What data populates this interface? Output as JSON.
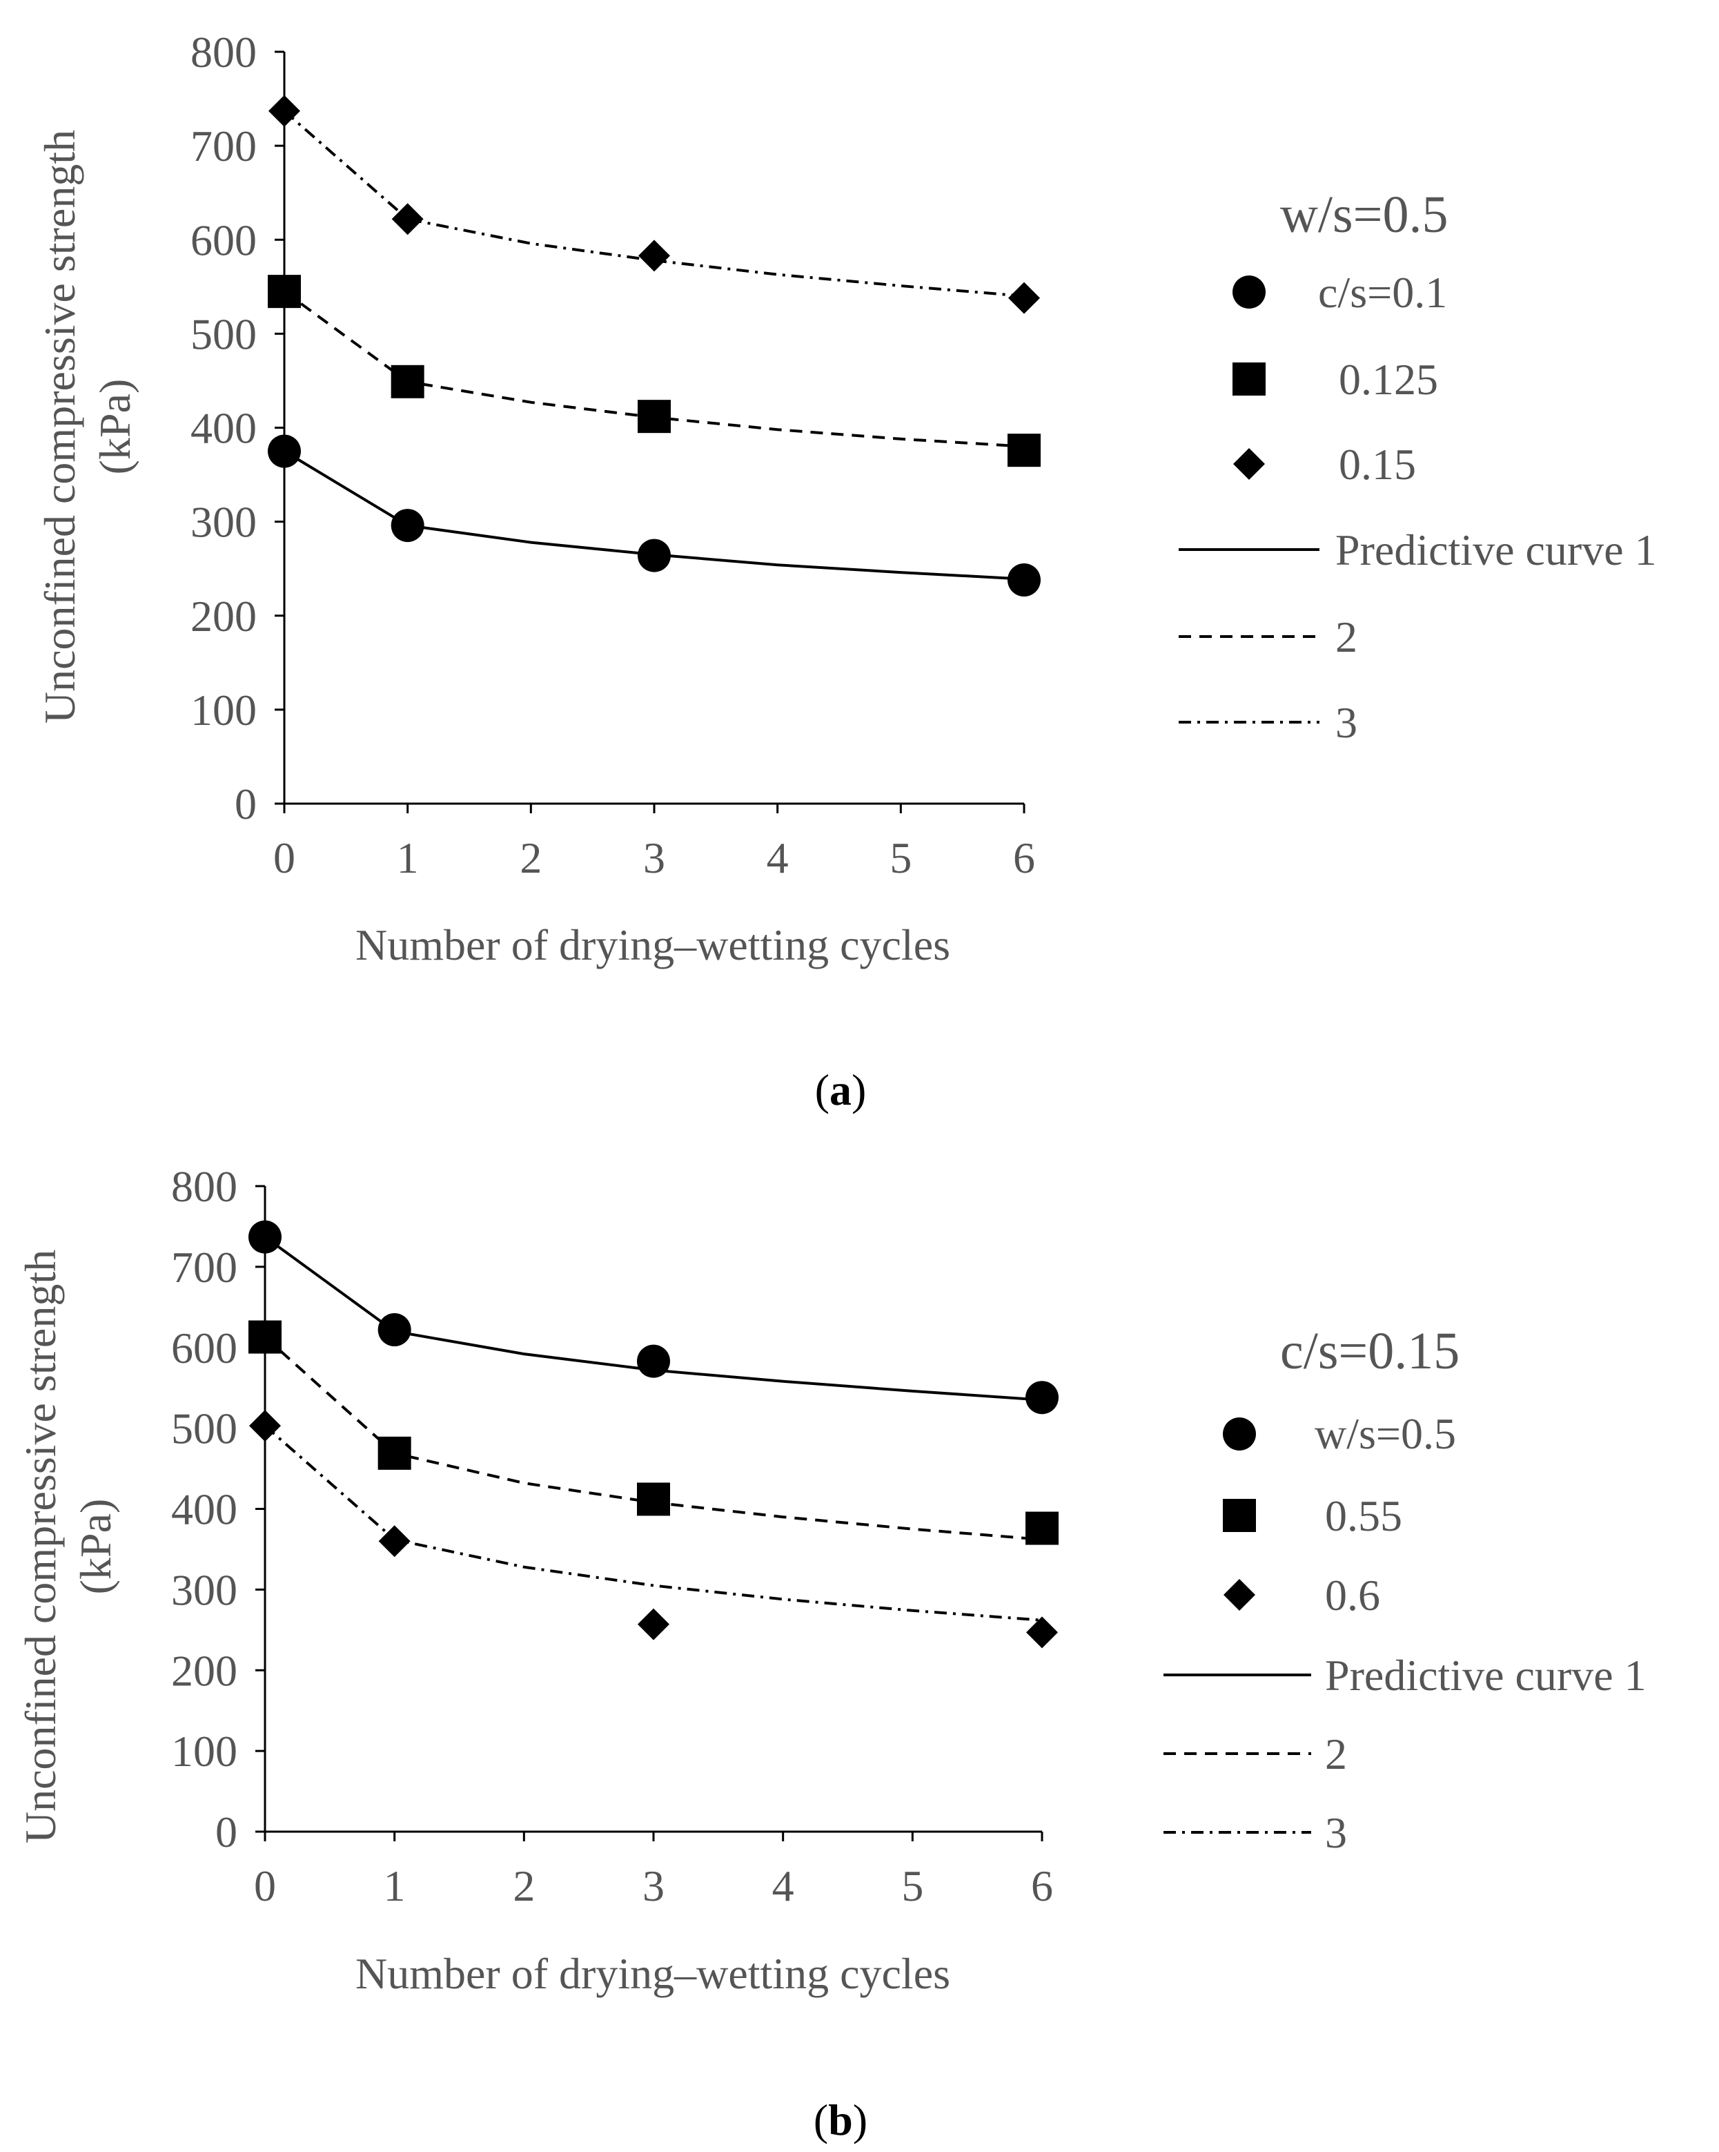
{
  "figure": {
    "panels": [
      {
        "id": "a",
        "panel_label_open": "(",
        "panel_label_letter": "a",
        "panel_label_close": ")",
        "legend": {
          "title": "w/s=0.5",
          "markers": [
            "c/s=0.1",
            "0.125",
            "0.15"
          ],
          "lines_first": "Predictive curve 1",
          "lines": [
            "2",
            "3"
          ]
        }
      },
      {
        "id": "b",
        "panel_label_open": "(",
        "panel_label_letter": "b",
        "panel_label_close": ")",
        "legend": {
          "title": "c/s=0.15",
          "markers": [
            "w/s=0.5",
            "0.55",
            "0.6"
          ],
          "lines_first": "Predictive curve 1",
          "lines": [
            "2",
            "3"
          ]
        }
      }
    ]
  },
  "chart_data": [
    {
      "type": "scatter",
      "panel": "a",
      "xlabel": "Number of drying–wetting cycles",
      "ylabel_line1": "Unconfined compressive strength",
      "ylabel_line2": "(kPa)",
      "xlim": [
        0,
        6
      ],
      "ylim": [
        0,
        800
      ],
      "xticks": [
        0,
        1,
        2,
        3,
        4,
        5,
        6
      ],
      "yticks": [
        0,
        100,
        200,
        300,
        400,
        500,
        600,
        700,
        800
      ],
      "legend_title": "w/s=0.5",
      "series": [
        {
          "name": "c/s=0.1",
          "marker": "circle",
          "x": [
            0,
            1,
            3,
            6
          ],
          "y": [
            375,
            296,
            264,
            238
          ]
        },
        {
          "name": "0.125",
          "marker": "square",
          "x": [
            0,
            1,
            3,
            6
          ],
          "y": [
            545,
            449,
            412,
            376
          ]
        },
        {
          "name": "0.15",
          "marker": "diamond",
          "x": [
            0,
            1,
            3,
            6
          ],
          "y": [
            737,
            622,
            583,
            538
          ]
        }
      ],
      "curves": [
        {
          "name": "Predictive curve 1",
          "style": "solid",
          "x": [
            0,
            1,
            2,
            3,
            4,
            5,
            6
          ],
          "y": [
            375,
            296,
            278,
            265,
            254,
            246,
            239
          ]
        },
        {
          "name": "2",
          "style": "dashed",
          "x": [
            0,
            1,
            2,
            3,
            4,
            5,
            6
          ],
          "y": [
            545,
            449,
            427,
            411,
            398,
            388,
            380
          ]
        },
        {
          "name": "3",
          "style": "dashdot",
          "x": [
            0,
            1,
            2,
            3,
            4,
            5,
            6
          ],
          "y": [
            737,
            622,
            596,
            578,
            563,
            551,
            540
          ]
        }
      ]
    },
    {
      "type": "scatter",
      "panel": "b",
      "xlabel": "Number of drying–wetting cycles",
      "ylabel_line1": "Unconfined compressive strength",
      "ylabel_line2": "(kPa)",
      "xlim": [
        0,
        6
      ],
      "ylim": [
        0,
        800
      ],
      "xticks": [
        0,
        1,
        2,
        3,
        4,
        5,
        6
      ],
      "yticks": [
        0,
        100,
        200,
        300,
        400,
        500,
        600,
        700,
        800
      ],
      "legend_title": "c/s=0.15",
      "series": [
        {
          "name": "w/s=0.5",
          "marker": "circle",
          "x": [
            0,
            1,
            3,
            6
          ],
          "y": [
            737,
            622,
            583,
            538
          ]
        },
        {
          "name": "0.55",
          "marker": "square",
          "x": [
            0,
            1,
            3,
            6
          ],
          "y": [
            613,
            469,
            412,
            376
          ]
        },
        {
          "name": "0.6",
          "marker": "diamond",
          "x": [
            0,
            1,
            3,
            6
          ],
          "y": [
            503,
            360,
            257,
            247
          ]
        }
      ],
      "curves": [
        {
          "name": "Predictive curve 1",
          "style": "solid",
          "x": [
            0,
            1,
            2,
            3,
            4,
            5,
            6
          ],
          "y": [
            737,
            620,
            592,
            572,
            558,
            546,
            535
          ]
        },
        {
          "name": "2",
          "style": "dashed",
          "x": [
            0,
            1,
            2,
            3,
            4,
            5,
            6
          ],
          "y": [
            613,
            469,
            432,
            408,
            390,
            375,
            362
          ]
        },
        {
          "name": "3",
          "style": "dashdot",
          "x": [
            0,
            1,
            2,
            3,
            4,
            5,
            6
          ],
          "y": [
            503,
            362,
            328,
            305,
            288,
            274,
            262
          ]
        }
      ]
    }
  ]
}
